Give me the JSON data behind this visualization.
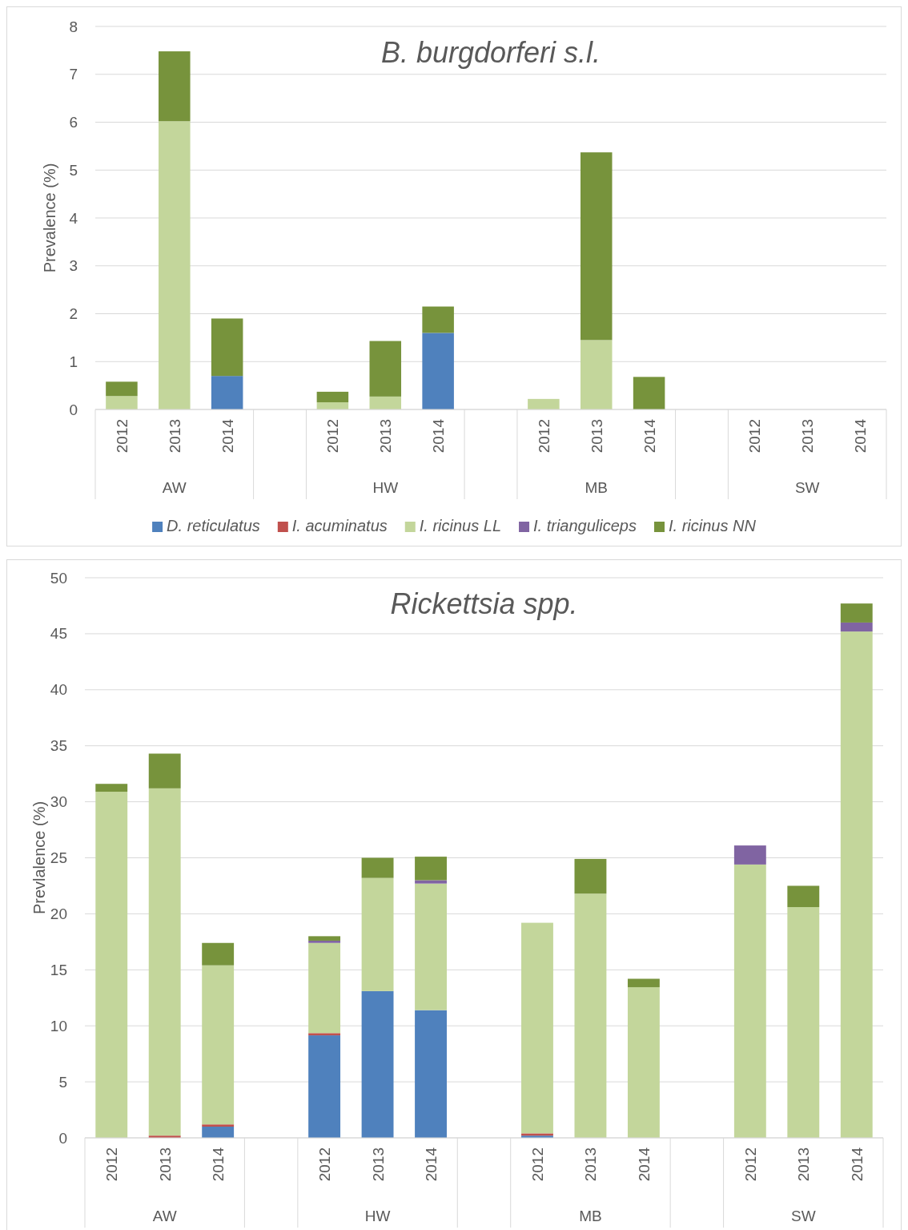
{
  "chart_data": [
    {
      "type": "bar",
      "title": "B. burgdorferi s.l.",
      "ylabel": "Prevalence (%)",
      "stacked": true,
      "grid": "y",
      "legend": "bottom",
      "categories": [
        "2012",
        "2013",
        "2014",
        null,
        "2012",
        "2013",
        "2014",
        null,
        "2012",
        "2013",
        "2014",
        null,
        "2012",
        "2013",
        "2014"
      ],
      "annotations": [
        "AW",
        "HW",
        "MB",
        "SW"
      ],
      "ylim": [
        0,
        8
      ],
      "yticks": [
        0,
        1,
        2,
        3,
        4,
        5,
        6,
        7,
        8
      ],
      "series": [
        {
          "name": "D. reticulatus",
          "color": "#4f81bd",
          "values": [
            0,
            0,
            0.7,
            null,
            0,
            0,
            1.6,
            null,
            0,
            0,
            0,
            null,
            0,
            0,
            0
          ]
        },
        {
          "name": "I. acuminatus",
          "color": "#c0504d",
          "values": [
            0,
            0,
            0,
            null,
            0,
            0,
            0,
            null,
            0,
            0,
            0,
            null,
            0,
            0,
            0
          ]
        },
        {
          "name": "I. ricinus LL",
          "color": "#c3d69b",
          "values": [
            0.28,
            6.02,
            0,
            null,
            0.15,
            0.27,
            0,
            null,
            0.22,
            1.45,
            0,
            null,
            0,
            0,
            0
          ]
        },
        {
          "name": "I. trianguliceps",
          "color": "#8064a2",
          "values": [
            0,
            0,
            0,
            null,
            0,
            0,
            0,
            null,
            0,
            0,
            0,
            null,
            0,
            0,
            0
          ]
        },
        {
          "name": "I. ricinus NN",
          "color": "#77933c",
          "values": [
            0.3,
            1.46,
            1.2,
            null,
            0.22,
            1.16,
            0.55,
            null,
            0,
            3.92,
            0.68,
            null,
            0,
            0,
            0
          ]
        }
      ]
    },
    {
      "type": "bar",
      "title": "Rickettsia spp.",
      "ylabel": "Prevlalence (%)",
      "stacked": true,
      "grid": "y",
      "categories": [
        "2012",
        "2013",
        "2014",
        null,
        "2012",
        "2013",
        "2014",
        null,
        "2012",
        "2013",
        "2014",
        null,
        "2012",
        "2013",
        "2014"
      ],
      "annotations": [
        "AW",
        "HW",
        "MB",
        "SW"
      ],
      "ylim": [
        0,
        50
      ],
      "yticks": [
        0,
        5,
        10,
        15,
        20,
        25,
        30,
        35,
        40,
        45,
        50
      ],
      "series": [
        {
          "color": "#4f81bd",
          "values": [
            0,
            0,
            1.0,
            null,
            9.15,
            13.1,
            11.4,
            null,
            0.2,
            0,
            0,
            null,
            0,
            0,
            0
          ]
        },
        {
          "color": "#c0504d",
          "values": [
            0,
            0.2,
            0.2,
            null,
            0.2,
            0,
            0,
            null,
            0.2,
            0,
            0,
            null,
            0,
            0,
            0
          ]
        },
        {
          "color": "#c3d69b",
          "values": [
            30.9,
            31.0,
            14.2,
            null,
            8.05,
            10.1,
            11.3,
            null,
            18.8,
            21.8,
            13.45,
            null,
            24.4,
            20.6,
            45.2
          ]
        },
        {
          "color": "#8064a2",
          "values": [
            0,
            0,
            0,
            null,
            0.2,
            0,
            0.3,
            null,
            0,
            0,
            0,
            null,
            1.7,
            0,
            0.8
          ]
        },
        {
          "color": "#77933c",
          "values": [
            0.7,
            3.1,
            2.0,
            null,
            0.4,
            1.8,
            2.1,
            null,
            0,
            3.1,
            0.75,
            null,
            0,
            1.9,
            1.7
          ]
        }
      ]
    }
  ]
}
